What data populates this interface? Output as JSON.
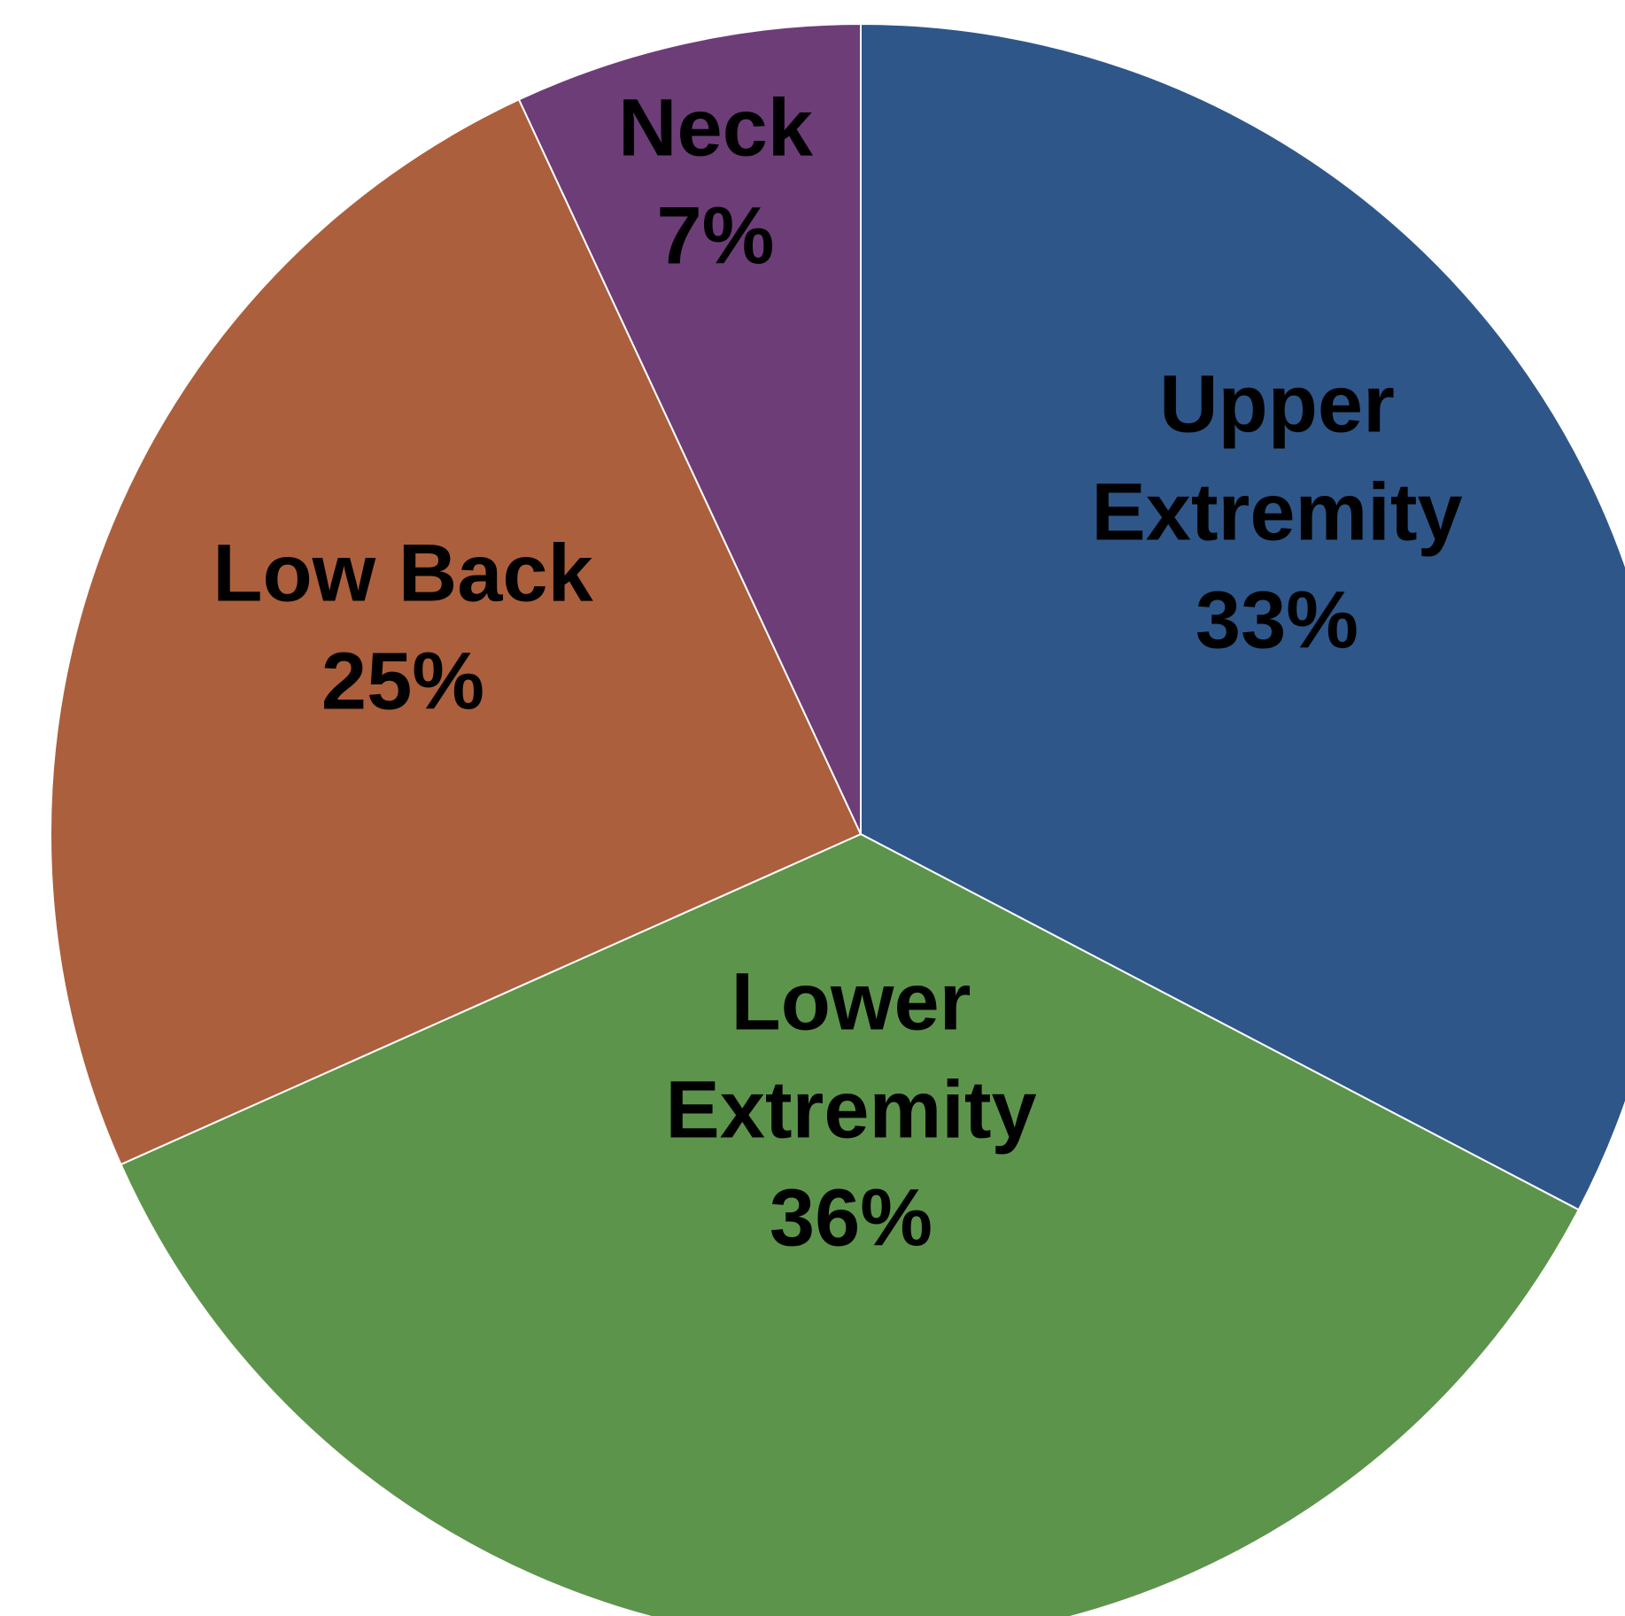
{
  "chart_data": {
    "type": "pie",
    "title": "",
    "start_angle_deg": 0,
    "direction": "clockwise",
    "slices": [
      {
        "label": "Upper Extremity",
        "label_lines": [
          "Upper",
          "Extremity"
        ],
        "value": 33,
        "display": "33%",
        "color": "#2E5689"
      },
      {
        "label": "Lower Extremity",
        "label_lines": [
          "Lower",
          "Extremity"
        ],
        "value": 36,
        "display": "36%",
        "color": "#5D944B"
      },
      {
        "label": "Low Back",
        "label_lines": [
          "Low Back"
        ],
        "value": 25,
        "display": "25%",
        "color": "#AC5F3C"
      },
      {
        "label": "Neck",
        "label_lines": [
          "Neck"
        ],
        "value": 7,
        "display": "7%",
        "color": "#6D3D78"
      }
    ]
  }
}
